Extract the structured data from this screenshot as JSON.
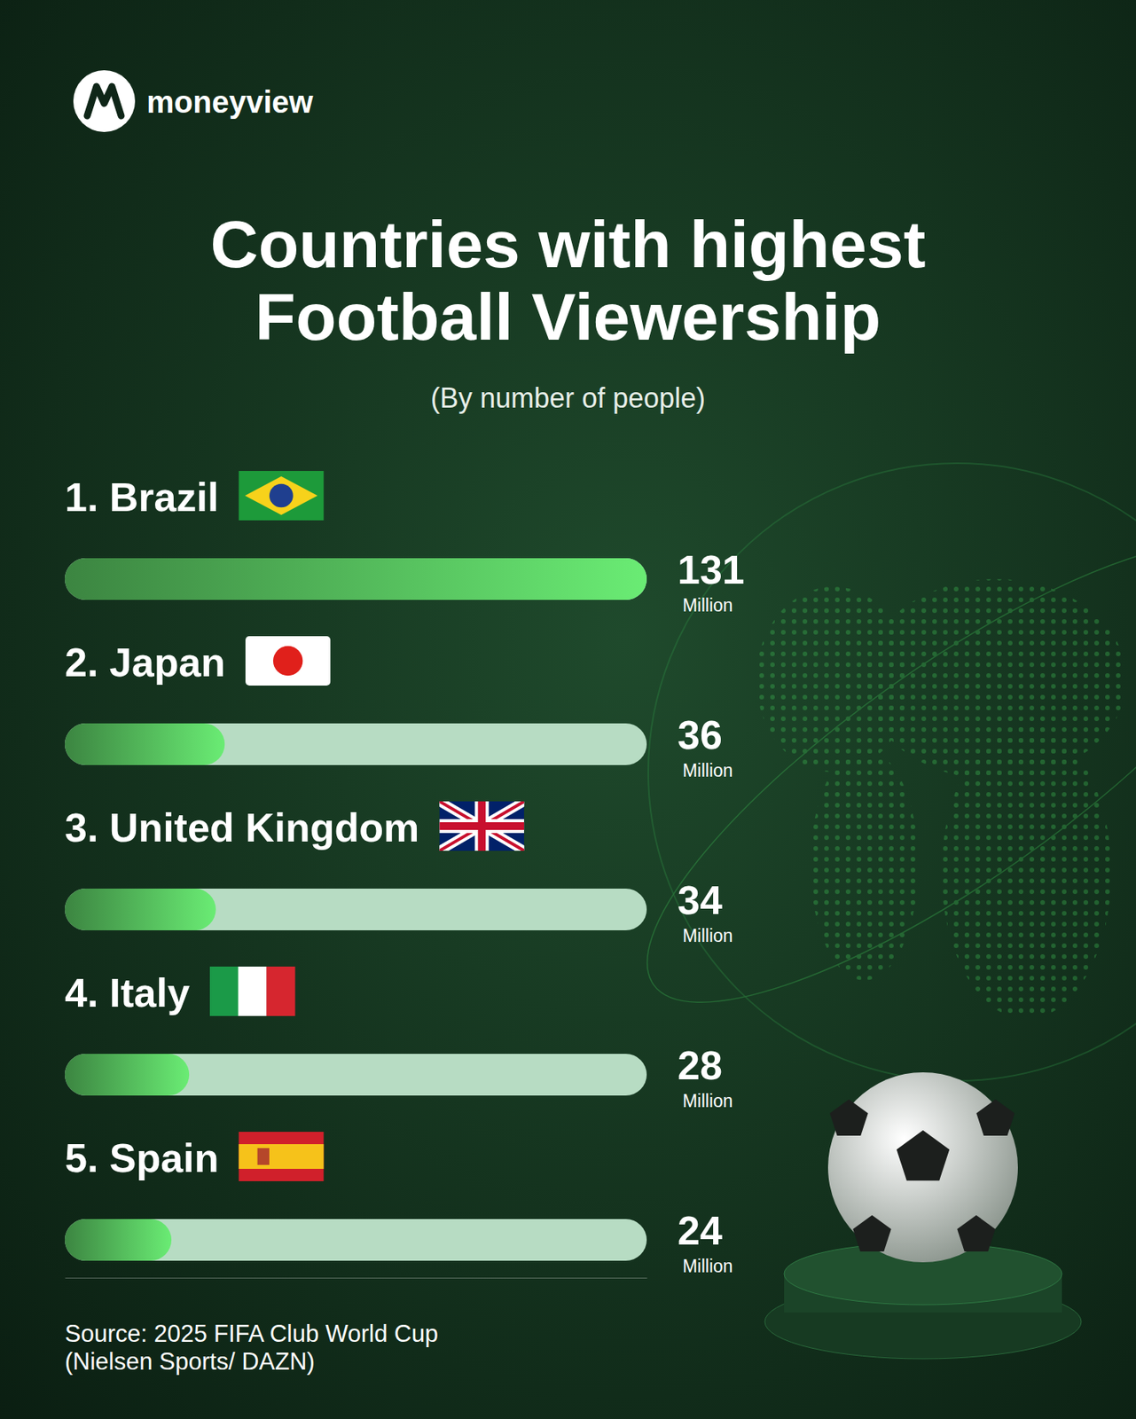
{
  "chart_data": {
    "type": "bar",
    "orientation": "horizontal",
    "title": "Countries with highest Football Viewership",
    "subtitle": "(By number of people)",
    "categories": [
      "1. Brazil",
      "2. Japan",
      "3. United Kingdom",
      "4. Italy",
      "5. Spain"
    ],
    "values": [
      131,
      36,
      34,
      28,
      24
    ],
    "value_labels": [
      "131 Million",
      "36 Million",
      "34 Million",
      "28 Million",
      "24 Million"
    ],
    "color": "#5fd468",
    "xlim": [
      0,
      131
    ],
    "xticks": [],
    "grid": false,
    "data_labels": true,
    "tick_labels": false
  },
  "brand": "moneyview",
  "source": [
    "Source: 2025 FIFA Club World Cup",
    "(Nielsen Sports/ DAZN)"
  ]
}
